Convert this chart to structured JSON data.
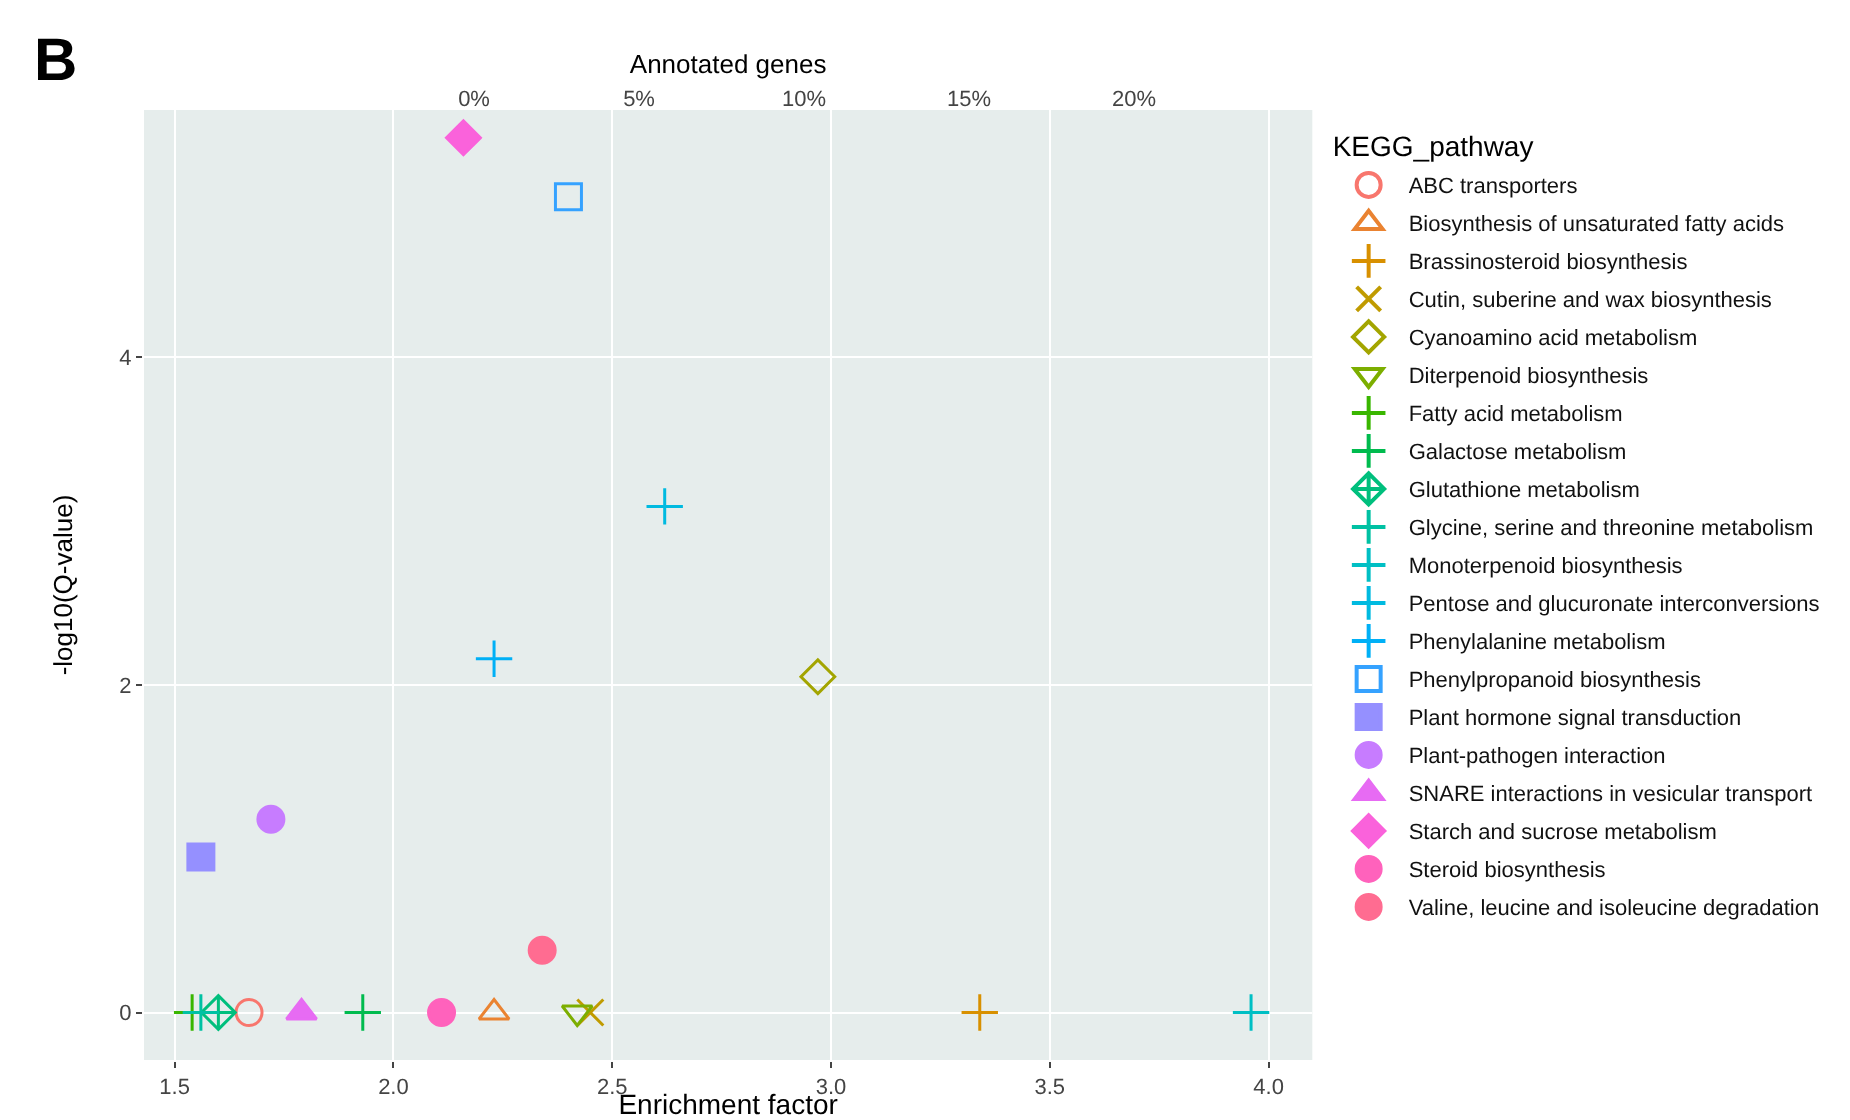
{
  "chart_data": {
    "type": "scatter",
    "xlabel": "Enrichment factor",
    "ylabel": "-log10(Q-value)",
    "legend_title": "KEGG_pathway",
    "x2label": "Annotated genes",
    "annotations": [
      "B"
    ],
    "xlim": [
      1.43,
      4.1
    ],
    "xticks": [
      {
        "value": 1.5,
        "label": "1.5"
      },
      {
        "value": 2,
        "label": "2.0"
      },
      {
        "value": 2.5,
        "label": "2.5"
      },
      {
        "value": 3,
        "label": "3.0"
      },
      {
        "value": 3.5,
        "label": "3.5"
      },
      {
        "value": 4,
        "label": "4.0"
      }
    ],
    "ylim": [
      -0.29,
      5.51
    ],
    "yticks": [
      0,
      2,
      4
    ],
    "x2lim": [
      -10,
      25.4
    ],
    "x2ticks": [
      {
        "value": 0,
        "label": "0%"
      },
      {
        "value": 5,
        "label": "5%"
      },
      {
        "value": 10,
        "label": "10%"
      },
      {
        "value": 15,
        "label": "15%"
      },
      {
        "value": 20,
        "label": "20%"
      }
    ],
    "grid": true,
    "legend": "right",
    "series": [
      {
        "name": "ABC transporters",
        "color": "#f8766d",
        "marker": "circle-open",
        "x": [
          1.67
        ],
        "values": [
          0
        ]
      },
      {
        "name": "Biosynthesis of unsaturated fatty acids",
        "color": "#ea8331",
        "marker": "triangle-open",
        "x": [
          2.23
        ],
        "values": [
          0
        ]
      },
      {
        "name": "Brassinosteroid biosynthesis",
        "color": "#d89000",
        "marker": "cross",
        "x": [
          3.34
        ],
        "values": [
          0
        ]
      },
      {
        "name": "Cutin, suberine and wax biosynthesis",
        "color": "#c09b00",
        "marker": "x",
        "x": [
          2.45
        ],
        "values": [
          0
        ]
      },
      {
        "name": "Cyanoamino acid metabolism",
        "color": "#a3a500",
        "marker": "diamond-open",
        "x": [
          2.97
        ],
        "values": [
          2.05
        ]
      },
      {
        "name": "Diterpenoid biosynthesis",
        "color": "#7cae00",
        "marker": "triangle-down-open",
        "x": [
          2.42
        ],
        "values": [
          0
        ]
      },
      {
        "name": "Fatty acid metabolism",
        "color": "#39b600",
        "marker": "cross",
        "x": [
          1.54
        ],
        "values": [
          0
        ]
      },
      {
        "name": "Galactose metabolism",
        "color": "#00bb4e",
        "marker": "cross",
        "x": [
          1.93
        ],
        "values": [
          0
        ]
      },
      {
        "name": "Glutathione metabolism",
        "color": "#00bf7d",
        "marker": "diamond-cross-open",
        "x": [
          1.6
        ],
        "values": [
          0
        ]
      },
      {
        "name": "Glycine, serine and threonine metabolism",
        "color": "#00c1a3",
        "marker": "cross",
        "x": [
          1.56
        ],
        "values": [
          0
        ]
      },
      {
        "name": "Monoterpenoid biosynthesis",
        "color": "#00bfc4",
        "marker": "cross",
        "x": [
          3.96
        ],
        "values": [
          0
        ]
      },
      {
        "name": "Pentose and glucuronate interconversions",
        "color": "#00bae0",
        "marker": "cross",
        "x": [
          2.62
        ],
        "values": [
          3.09
        ]
      },
      {
        "name": "Phenylalanine metabolism",
        "color": "#00b0f6",
        "marker": "cross",
        "x": [
          2.23
        ],
        "values": [
          2.16
        ]
      },
      {
        "name": "Phenylpropanoid biosynthesis",
        "color": "#35a2ff",
        "marker": "square-open",
        "x": [
          2.4
        ],
        "values": [
          4.98
        ]
      },
      {
        "name": "Plant hormone signal transduction",
        "color": "#9590ff",
        "marker": "square",
        "x": [
          1.56
        ],
        "values": [
          0.95
        ]
      },
      {
        "name": "Plant-pathogen interaction",
        "color": "#c77cff",
        "marker": "circle",
        "x": [
          1.72
        ],
        "values": [
          1.18
        ]
      },
      {
        "name": "SNARE interactions in vesicular transport",
        "color": "#e76bf3",
        "marker": "triangle",
        "x": [
          1.79
        ],
        "values": [
          0
        ]
      },
      {
        "name": "Starch and sucrose metabolism",
        "color": "#fa62db",
        "marker": "diamond",
        "x": [
          2.16
        ],
        "values": [
          5.34
        ]
      },
      {
        "name": "Steroid biosynthesis",
        "color": "#ff62bc",
        "marker": "circle",
        "x": [
          2.11
        ],
        "values": [
          0
        ]
      },
      {
        "name": "Valine, leucine and isoleucine degradation",
        "color": "#ff6c91",
        "marker": "circle",
        "x": [
          2.34
        ],
        "values": [
          0.38
        ]
      }
    ]
  }
}
